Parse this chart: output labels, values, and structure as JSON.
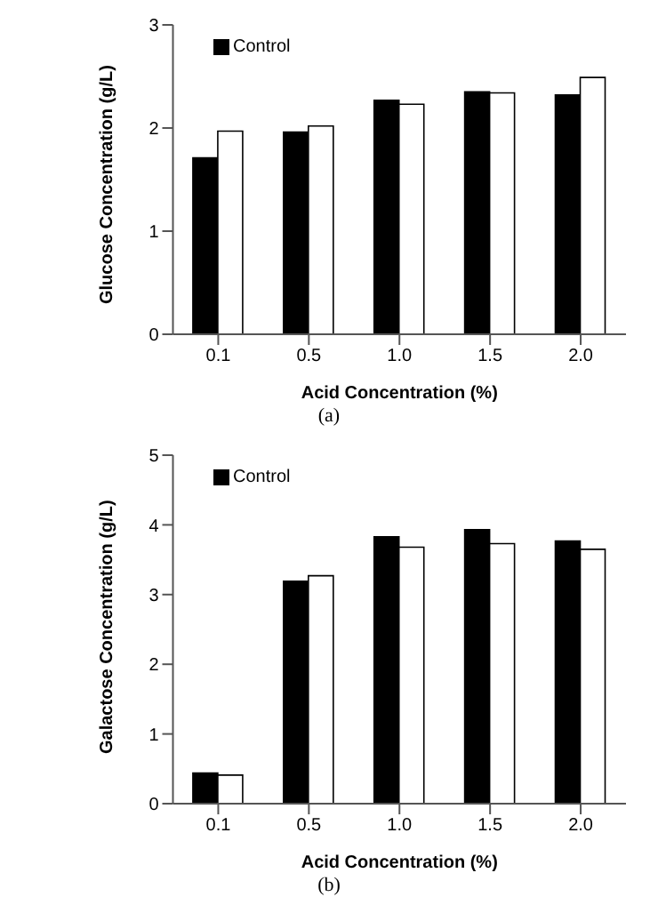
{
  "chart_data": [
    {
      "type": "bar",
      "xlabel": "Acid Concentration (%)",
      "ylabel": "Glucose Concentration (g/L)",
      "categories": [
        "0.1",
        "0.5",
        "1.0",
        "1.5",
        "2.0"
      ],
      "series": [
        {
          "name": "Control",
          "color": "#000000",
          "values": [
            1.71,
            1.96,
            2.27,
            2.35,
            2.32
          ]
        },
        {
          "color": "#ffffff",
          "values": [
            1.97,
            2.02,
            2.23,
            2.34,
            2.49
          ]
        }
      ],
      "ylim": [
        0,
        3
      ],
      "yticks": [
        0,
        1,
        2,
        3
      ],
      "grid": false,
      "legend": "top left",
      "annotations": [
        "(a)"
      ]
    },
    {
      "type": "bar",
      "xlabel": "Acid Concentration (%)",
      "ylabel": "Galactose Concentration (g/L)",
      "categories": [
        "0.1",
        "0.5",
        "1.0",
        "1.5",
        "2.0"
      ],
      "series": [
        {
          "name": "Control",
          "color": "#000000",
          "values": [
            0.44,
            3.19,
            3.83,
            3.93,
            3.77
          ]
        },
        {
          "color": "#ffffff",
          "values": [
            0.41,
            3.27,
            3.68,
            3.73,
            3.65
          ]
        }
      ],
      "ylim": [
        0,
        5
      ],
      "yticks": [
        0,
        1,
        2,
        3,
        4,
        5
      ],
      "grid": false,
      "legend": "top left",
      "annotations": [
        "(b)"
      ]
    }
  ]
}
